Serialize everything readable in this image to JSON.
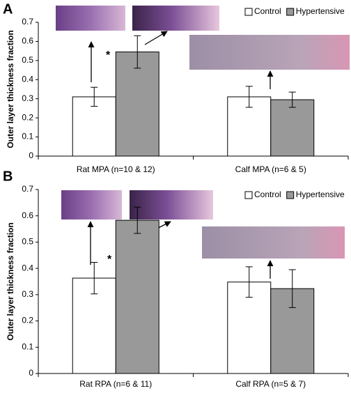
{
  "chart_data": [
    {
      "type": "bar",
      "panel_label": "A",
      "ylabel": "Outer layer thickness fraction",
      "categories": [
        "Rat MPA (n=10 & 12)",
        "Calf MPA (n=6 & 5)"
      ],
      "series": [
        {
          "name": "Control",
          "color": "#ffffff",
          "values": [
            0.31,
            0.31
          ],
          "errors": [
            0.05,
            0.055
          ]
        },
        {
          "name": "Hypertensive",
          "color": "#999999",
          "values": [
            0.545,
            0.295
          ],
          "errors": [
            0.085,
            0.04
          ]
        }
      ],
      "annotations": [
        "*"
      ],
      "ylim": [
        0,
        0.7
      ],
      "yticks": [
        0,
        0.1,
        0.2,
        0.3,
        0.4,
        0.5,
        0.6,
        0.7
      ]
    },
    {
      "type": "bar",
      "panel_label": "B",
      "ylabel": "Outer layer thickness fraction",
      "categories": [
        "Rat RPA (n=6 & 11)",
        "Calf RPA (n=5 & 7)"
      ],
      "series": [
        {
          "name": "Control",
          "color": "#ffffff",
          "values": [
            0.363,
            0.348
          ],
          "errors": [
            0.06,
            0.058
          ]
        },
        {
          "name": "Hypertensive",
          "color": "#999999",
          "values": [
            0.583,
            0.323
          ],
          "errors": [
            0.05,
            0.072
          ]
        }
      ],
      "annotations": [
        "*"
      ],
      "ylim": [
        0,
        0.7
      ],
      "yticks": [
        0,
        0.1,
        0.2,
        0.3,
        0.4,
        0.5,
        0.6,
        0.7
      ]
    }
  ]
}
